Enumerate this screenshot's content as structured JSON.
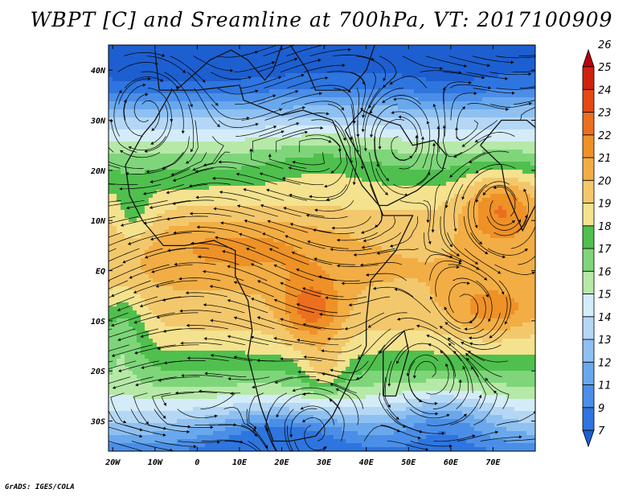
{
  "chart_data": {
    "type": "heatmap",
    "title": "WBPT [C] and Sreamline at 700hPa, VT: 2017100909",
    "x_tick_labels": [
      "20W",
      "10W",
      "0",
      "10E",
      "20E",
      "30E",
      "40E",
      "50E",
      "60E",
      "70E"
    ],
    "y_tick_labels": [
      "40N",
      "30N",
      "20N",
      "10N",
      "EQ",
      "10S",
      "20S",
      "30S"
    ],
    "lon_range": [
      -21,
      80
    ],
    "lat_range": [
      -36,
      45
    ],
    "x_ticks_deg": [
      -20,
      -10,
      0,
      10,
      20,
      30,
      40,
      50,
      60,
      70
    ],
    "y_ticks_deg": [
      40,
      30,
      20,
      10,
      0,
      -10,
      -20,
      -30
    ],
    "colorbar": {
      "levels": [
        "7",
        "9",
        "11",
        "12",
        "13",
        "14",
        "15",
        "16",
        "17",
        "18",
        "19",
        "20",
        "21",
        "22",
        "23",
        "24",
        "25",
        "26"
      ],
      "colors": [
        "#1d5fd0",
        "#2f75e0",
        "#4a8ee8",
        "#6aa8ee",
        "#8ec0f2",
        "#b3d7f5",
        "#d4ecf8",
        "#b6e8a8",
        "#7fd67a",
        "#4fbf4e",
        "#f4e28f",
        "#f3c86c",
        "#f2ad44",
        "#ee9227",
        "#eb6f1e",
        "#e34a14",
        "#d0230e",
        "#b8000a"
      ]
    },
    "grid": false,
    "legend_position": "right"
  },
  "credit": "GrADS: IGES/COLA"
}
